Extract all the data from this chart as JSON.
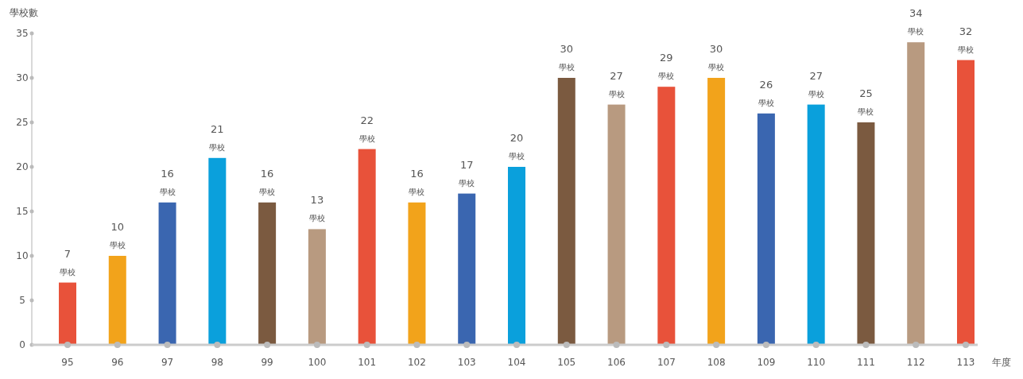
{
  "chart_data": {
    "type": "bar",
    "ylabel": "學校數",
    "xlabel": "年度",
    "categories": [
      "95",
      "96",
      "97",
      "98",
      "99",
      "100",
      "101",
      "102",
      "103",
      "104",
      "105",
      "106",
      "107",
      "108",
      "109",
      "110",
      "111",
      "112",
      "113"
    ],
    "values": [
      7,
      10,
      16,
      21,
      16,
      13,
      22,
      16,
      17,
      20,
      30,
      27,
      29,
      30,
      26,
      27,
      25,
      34,
      32
    ],
    "colors": [
      "#e8523a",
      "#f2a31b",
      "#3a66b0",
      "#0aa0dc",
      "#7b5a40",
      "#b89a80",
      "#e8523a",
      "#f2a31b",
      "#3a66b0",
      "#0aa0dc",
      "#7b5a40",
      "#b89a80",
      "#e8523a",
      "#f2a31b",
      "#3a66b0",
      "#0aa0dc",
      "#7b5a40",
      "#b89a80",
      "#e8523a"
    ],
    "value_labels": [
      "7\n學校",
      "10\n學校",
      "16\n學校",
      "21\n學校",
      "16\n學校",
      "13\n學校",
      "22\n學校",
      "16\n學校",
      "17\n學校",
      "20\n學校",
      "30\n學校",
      "27\n學校",
      "29\n學校",
      "30\n學校",
      "26\n學校",
      "27\n學校",
      "25\n學校",
      "34\n學校",
      "32\n學校"
    ],
    "ylim": [
      0,
      35
    ],
    "yticks": [
      0,
      5,
      10,
      15,
      20,
      25,
      30,
      35
    ],
    "grid": false
  }
}
